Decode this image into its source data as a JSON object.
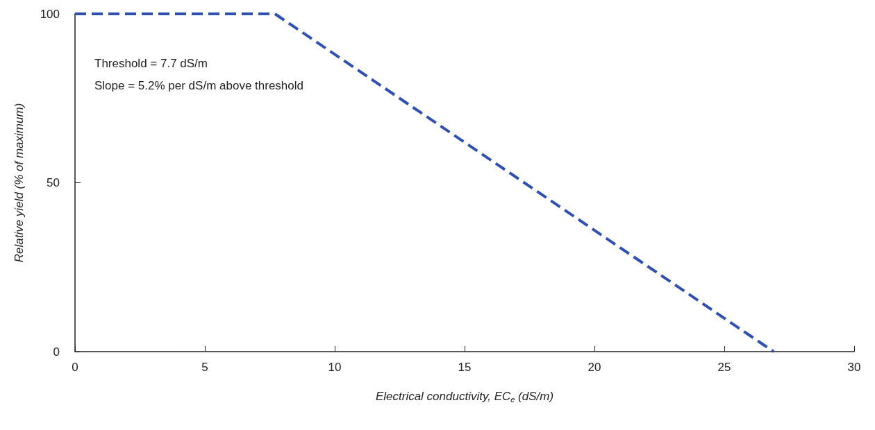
{
  "chart_data": {
    "type": "line",
    "xlabel": "Electrical conductivity, EC$_{e}$ (dS/m)",
    "ylabel": "Relative yield (% of maximum)",
    "annotations": [
      "Threshold = 7.7 dS/m",
      "Slope = 5.2% per dS/m above threshold"
    ],
    "x": [
      0,
      7.7,
      26.9
    ],
    "series": [
      {
        "color": "#3050b0",
        "values": [
          100,
          100,
          0
        ]
      }
    ],
    "xlim": [
      0,
      30
    ],
    "xticks": [
      0,
      5,
      10,
      15,
      20,
      25,
      30
    ],
    "ylim": [
      0,
      100
    ],
    "yticks": [
      0,
      50,
      100
    ],
    "grid": false,
    "marker": "none",
    "line_style": "dashed"
  }
}
